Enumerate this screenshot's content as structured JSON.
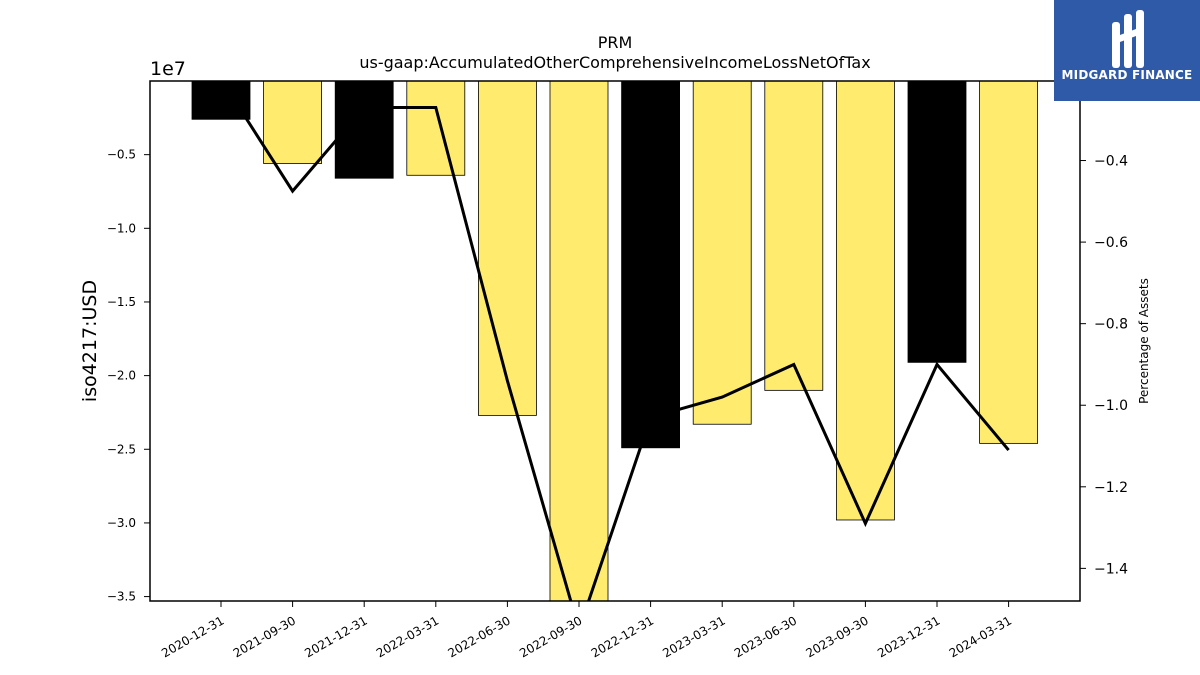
{
  "chart_data": {
    "type": "bar",
    "title_line1": "PRM",
    "title_line2": "us-gaap:AccumulatedOtherComprehensiveIncomeLossNetOfTax",
    "ylabel": "iso4217:USD",
    "y_offset_label": "1e7",
    "y2label": "Percentage of Assets",
    "categories": [
      "2020-12-31",
      "2021-09-30",
      "2021-12-31",
      "2022-03-31",
      "2022-06-30",
      "2022-09-30",
      "2022-12-31",
      "2023-03-31",
      "2023-06-30",
      "2023-09-30",
      "2023-12-31",
      "2024-03-31"
    ],
    "values": [
      -2600000,
      -5600000,
      -6600000,
      -6400000,
      -22700000,
      -35300000,
      -24900000,
      -23300000,
      -21000000,
      -29800000,
      -19100000,
      -24600000
    ],
    "bar_colors": [
      "#000000",
      "#ffec6e",
      "#000000",
      "#ffec6e",
      "#ffec6e",
      "#ffec6e",
      "#000000",
      "#ffec6e",
      "#ffec6e",
      "#ffec6e",
      "#000000",
      "#ffec6e"
    ],
    "ylim": [
      -35300000,
      0
    ],
    "yticks": [
      -5000000,
      -10000000,
      -15000000,
      -20000000,
      -25000000,
      -30000000,
      -35000000
    ],
    "ytick_labels": [
      "−0.5",
      "−1.0",
      "−1.5",
      "−2.0",
      "−2.5",
      "−3.0",
      "−3.5"
    ],
    "line_series": {
      "name": "Percentage of Assets",
      "values": [
        -0.2,
        -0.475,
        -0.27,
        -0.27,
        -0.94,
        -1.55,
        -1.03,
        -0.98,
        -0.9,
        -1.29,
        -0.9,
        -1.11
      ]
    },
    "y2lim": [
      -1.48,
      -0.205
    ],
    "y2ticks": [
      -0.4,
      -0.6,
      -0.8,
      -1.0,
      -1.2,
      -1.4
    ],
    "y2tick_labels": [
      "−0.4",
      "−0.6",
      "−0.8",
      "−1.0",
      "−1.2",
      "−1.4"
    ],
    "grid": false,
    "legend": "none"
  },
  "logo": {
    "text": "MIDGARD FINANCE",
    "bg_color": "#2f5aa8"
  }
}
